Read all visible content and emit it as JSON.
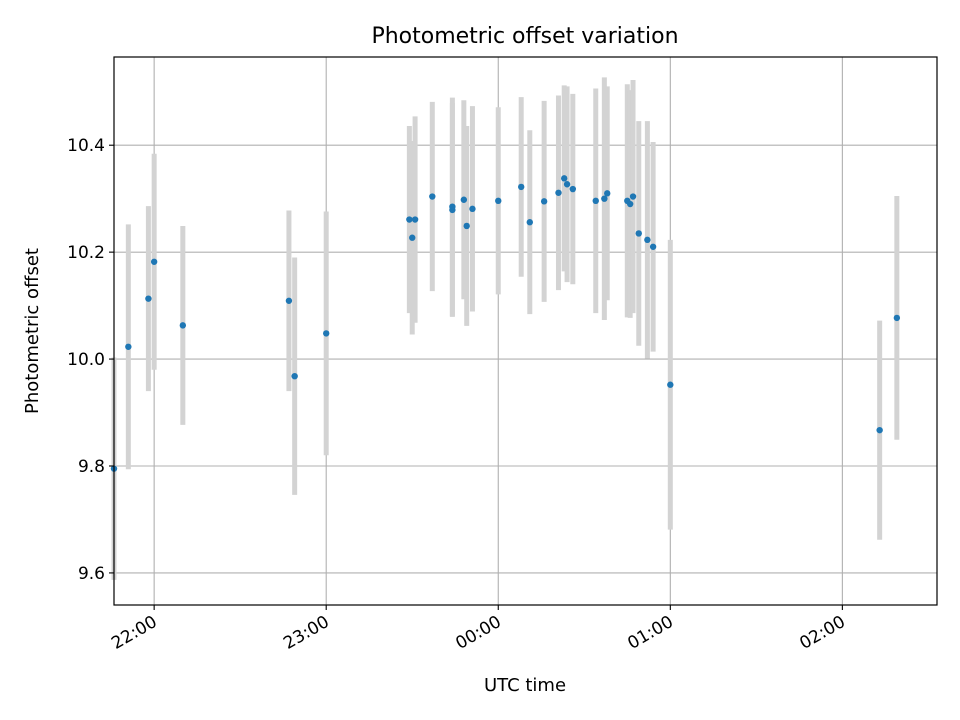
{
  "chart_data": {
    "type": "scatter",
    "title": "Photometric offset variation",
    "xlabel": "UTC time",
    "ylabel": "Photometric offset",
    "x_is_time": true,
    "x_time_format": "HH:MM",
    "xlim": [
      "21:46",
      "02:33"
    ],
    "ylim": [
      9.54,
      10.565
    ],
    "xticks": [
      "22:00",
      "23:00",
      "00:00",
      "01:00",
      "02:00"
    ],
    "yticks": [
      9.6,
      9.8,
      10.0,
      10.2,
      10.4
    ],
    "ytick_labels": [
      "9.6",
      "9.8",
      "10.0",
      "10.2",
      "10.4"
    ],
    "grid": true,
    "legend": "none",
    "colors": {
      "point": "#1f77b4",
      "errorbar": "#d3d3d3",
      "grid": "#b0b0b0"
    },
    "points": [
      {
        "x": "21:46",
        "y": 9.795,
        "err": 0.208
      },
      {
        "x": "21:51",
        "y": 10.023,
        "err": 0.229
      },
      {
        "x": "21:58",
        "y": 10.113,
        "err": 0.173
      },
      {
        "x": "22:00",
        "y": 10.182,
        "err": 0.202
      },
      {
        "x": "22:10",
        "y": 10.063,
        "err": 0.186
      },
      {
        "x": "22:47",
        "y": 10.109,
        "err": 0.169
      },
      {
        "x": "22:49",
        "y": 9.968,
        "err": 0.222
      },
      {
        "x": "23:00",
        "y": 10.048,
        "err": 0.228
      },
      {
        "x": "23:29",
        "y": 10.261,
        "err": 0.175
      },
      {
        "x": "23:30",
        "y": 10.227,
        "err": 0.181
      },
      {
        "x": "23:31",
        "y": 10.261,
        "err": 0.193
      },
      {
        "x": "23:37",
        "y": 10.304,
        "err": 0.177
      },
      {
        "x": "23:44",
        "y": 10.279,
        "err": 0.2
      },
      {
        "x": "23:44",
        "y": 10.285,
        "err": 0.204
      },
      {
        "x": "23:48",
        "y": 10.298,
        "err": 0.186
      },
      {
        "x": "23:49",
        "y": 10.249,
        "err": 0.187
      },
      {
        "x": "23:51",
        "y": 10.281,
        "err": 0.192
      },
      {
        "x": "24:00",
        "y": 10.296,
        "err": 0.175
      },
      {
        "x": "24:08",
        "y": 10.322,
        "err": 0.168
      },
      {
        "x": "24:11",
        "y": 10.256,
        "err": 0.172
      },
      {
        "x": "24:16",
        "y": 10.295,
        "err": 0.188
      },
      {
        "x": "24:21",
        "y": 10.311,
        "err": 0.182
      },
      {
        "x": "24:23",
        "y": 10.338,
        "err": 0.174
      },
      {
        "x": "24:24",
        "y": 10.327,
        "err": 0.183
      },
      {
        "x": "24:26",
        "y": 10.318,
        "err": 0.178
      },
      {
        "x": "24:34",
        "y": 10.296,
        "err": 0.21
      },
      {
        "x": "24:37",
        "y": 10.3,
        "err": 0.227
      },
      {
        "x": "24:38",
        "y": 10.31,
        "err": 0.2
      },
      {
        "x": "24:45",
        "y": 10.296,
        "err": 0.218
      },
      {
        "x": "24:46",
        "y": 10.29,
        "err": 0.213
      },
      {
        "x": "24:47",
        "y": 10.304,
        "err": 0.218
      },
      {
        "x": "24:49",
        "y": 10.235,
        "err": 0.21
      },
      {
        "x": "24:52",
        "y": 10.223,
        "err": 0.222
      },
      {
        "x": "24:54",
        "y": 10.21,
        "err": 0.196
      },
      {
        "x": "25:00",
        "y": 9.952,
        "err": 0.271
      },
      {
        "x": "26:13",
        "y": 9.867,
        "err": 0.205
      },
      {
        "x": "26:19",
        "y": 10.077,
        "err": 0.228
      }
    ]
  }
}
